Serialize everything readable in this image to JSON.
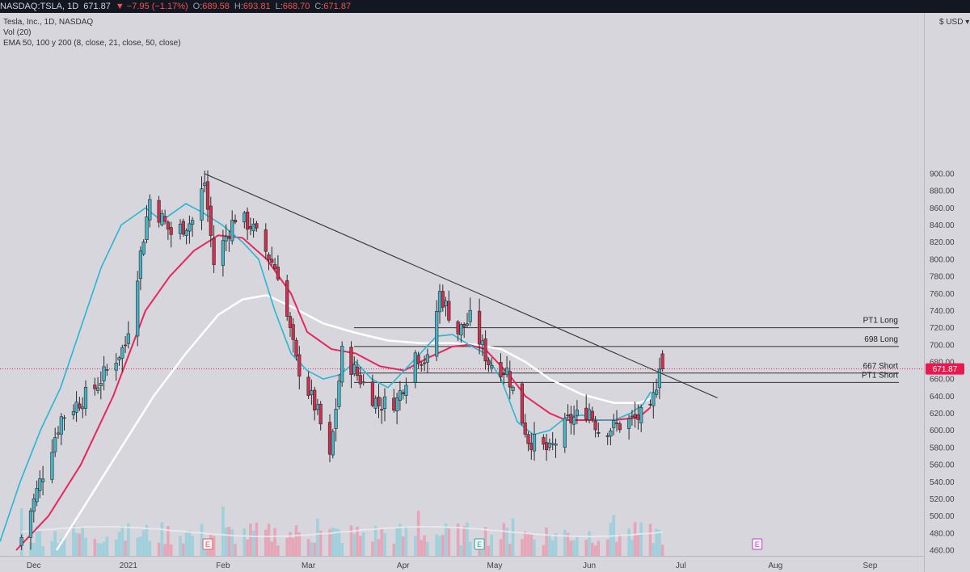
{
  "header": {
    "symbol": "NASDAQ:TSLA, 1D",
    "last": "671.87",
    "change": "▼ −7.95 (−1.17%)",
    "open_label": "O:",
    "open": "689.58",
    "high_label": "H:",
    "high": "693.81",
    "low_label": "L:",
    "low": "668.70",
    "close_label": "C:",
    "close": "671.87"
  },
  "legend": {
    "title": "Tesla, Inc., 1D, NASDAQ",
    "volume": "Vol (20)",
    "ema": "EMA 50, 100 y 200 (8, close, 21, close, 50, close)"
  },
  "currency": "$ USD ▾",
  "price_tag": "671.87",
  "colors": {
    "up": "#47b3c6",
    "down": "#d0304f",
    "ema_fast": "#2ab5d3",
    "ema_mid": "#e8265a",
    "ema_slow": "#ffffff",
    "price_tag": "#e8194f"
  },
  "chart_data": {
    "type": "candlestick",
    "y_axis": {
      "min": 460,
      "max": 900,
      "step": 20,
      "ticks": [
        "460.00",
        "480.00",
        "500.00",
        "520.00",
        "540.00",
        "560.00",
        "580.00",
        "600.00",
        "620.00",
        "640.00",
        "660.00",
        "680.00",
        "700.00",
        "720.00",
        "740.00",
        "760.00",
        "780.00",
        "800.00",
        "820.00",
        "840.00",
        "860.00",
        "880.00",
        "900.00"
      ]
    },
    "x_axis": {
      "labels": [
        "Dec",
        "2021",
        "Feb",
        "Mar",
        "Apr",
        "May",
        "Jun",
        "Jul",
        "Aug",
        "Sep"
      ]
    },
    "levels": [
      {
        "label": "PT1 Long",
        "value": 720
      },
      {
        "label": "698 Long",
        "value": 698
      },
      {
        "label": "667 Short",
        "value": 667
      },
      {
        "label": "PT1 Short",
        "value": 656
      }
    ],
    "trendline": {
      "from": {
        "date": "2021-01-26",
        "price": 900
      },
      "to": {
        "date": "2021-07-13",
        "price": 638
      }
    },
    "earnings": [
      "2021-01-27",
      "2021-04-26",
      "2021-07-26"
    ],
    "anchors": [
      {
        "date": "2020-11-27",
        "price": 475
      },
      {
        "date": "2020-12-10",
        "price": 615
      },
      {
        "date": "2020-12-21",
        "price": 650
      },
      {
        "date": "2020-12-31",
        "price": 700
      },
      {
        "date": "2021-01-08",
        "price": 870
      },
      {
        "date": "2021-01-15",
        "price": 830
      },
      {
        "date": "2021-01-22",
        "price": 845
      },
      {
        "date": "2021-01-26",
        "price": 890
      },
      {
        "date": "2021-01-29",
        "price": 795
      },
      {
        "date": "2021-02-05",
        "price": 850
      },
      {
        "date": "2021-02-10",
        "price": 840
      },
      {
        "date": "2021-02-19",
        "price": 785
      },
      {
        "date": "2021-02-25",
        "price": 680
      },
      {
        "date": "2021-03-04",
        "price": 620
      },
      {
        "date": "2021-03-08",
        "price": 565
      },
      {
        "date": "2021-03-12",
        "price": 690
      },
      {
        "date": "2021-03-19",
        "price": 655
      },
      {
        "date": "2021-03-24",
        "price": 630
      },
      {
        "date": "2021-03-30",
        "price": 635
      },
      {
        "date": "2021-04-05",
        "price": 690
      },
      {
        "date": "2021-04-09",
        "price": 680
      },
      {
        "date": "2021-04-13",
        "price": 760
      },
      {
        "date": "2021-04-19",
        "price": 715
      },
      {
        "date": "2021-04-23",
        "price": 730
      },
      {
        "date": "2021-04-29",
        "price": 680
      },
      {
        "date": "2021-05-05",
        "price": 670
      },
      {
        "date": "2021-05-12",
        "price": 590
      },
      {
        "date": "2021-05-19",
        "price": 575
      },
      {
        "date": "2021-05-25",
        "price": 610
      },
      {
        "date": "2021-06-01",
        "price": 625
      },
      {
        "date": "2021-06-04",
        "price": 600
      },
      {
        "date": "2021-06-10",
        "price": 605
      },
      {
        "date": "2021-06-17",
        "price": 615
      },
      {
        "date": "2021-06-21",
        "price": 620
      },
      {
        "date": "2021-06-23",
        "price": 656
      },
      {
        "date": "2021-06-24",
        "price": 680
      },
      {
        "date": "2021-06-25",
        "price": 672
      }
    ],
    "ema": {
      "fast": [
        [
          0,
          470
        ],
        [
          25,
          540
        ],
        [
          50,
          600
        ],
        [
          75,
          650
        ],
        [
          100,
          720
        ],
        [
          125,
          790
        ],
        [
          150,
          840
        ],
        [
          180,
          860
        ],
        [
          200,
          845
        ],
        [
          230,
          865
        ],
        [
          250,
          855
        ],
        [
          275,
          840
        ],
        [
          300,
          820
        ],
        [
          320,
          800
        ],
        [
          340,
          740
        ],
        [
          360,
          690
        ],
        [
          380,
          670
        ],
        [
          400,
          660
        ],
        [
          420,
          665
        ],
        [
          440,
          680
        ],
        [
          460,
          660
        ],
        [
          480,
          650
        ],
        [
          500,
          670
        ],
        [
          520,
          690
        ],
        [
          540,
          710
        ],
        [
          560,
          712
        ],
        [
          580,
          700
        ],
        [
          600,
          690
        ],
        [
          620,
          660
        ],
        [
          640,
          610
        ],
        [
          660,
          595
        ],
        [
          680,
          600
        ],
        [
          700,
          615
        ],
        [
          720,
          618
        ],
        [
          740,
          612
        ],
        [
          760,
          612
        ],
        [
          780,
          620
        ],
        [
          795,
          630
        ],
        [
          805,
          645
        ]
      ],
      "mid": [
        [
          20,
          460
        ],
        [
          60,
          500
        ],
        [
          100,
          560
        ],
        [
          140,
          640
        ],
        [
          180,
          740
        ],
        [
          210,
          780
        ],
        [
          240,
          810
        ],
        [
          270,
          828
        ],
        [
          300,
          825
        ],
        [
          330,
          800
        ],
        [
          360,
          760
        ],
        [
          380,
          715
        ],
        [
          410,
          695
        ],
        [
          440,
          690
        ],
        [
          470,
          675
        ],
        [
          500,
          670
        ],
        [
          530,
          685
        ],
        [
          560,
          698
        ],
        [
          580,
          700
        ],
        [
          600,
          695
        ],
        [
          630,
          665
        ],
        [
          650,
          640
        ],
        [
          680,
          620
        ],
        [
          700,
          612
        ],
        [
          730,
          612
        ],
        [
          760,
          612
        ],
        [
          790,
          615
        ],
        [
          805,
          627
        ]
      ],
      "slow": [
        [
          70,
          460
        ],
        [
          110,
          520
        ],
        [
          150,
          580
        ],
        [
          190,
          640
        ],
        [
          230,
          690
        ],
        [
          270,
          735
        ],
        [
          300,
          753
        ],
        [
          330,
          758
        ],
        [
          360,
          745
        ],
        [
          400,
          725
        ],
        [
          440,
          714
        ],
        [
          480,
          705
        ],
        [
          520,
          702
        ],
        [
          560,
          702
        ],
        [
          590,
          700
        ],
        [
          620,
          695
        ],
        [
          650,
          680
        ],
        [
          680,
          660
        ],
        [
          720,
          642
        ],
        [
          760,
          632
        ],
        [
          790,
          632
        ],
        [
          805,
          637
        ]
      ]
    }
  }
}
